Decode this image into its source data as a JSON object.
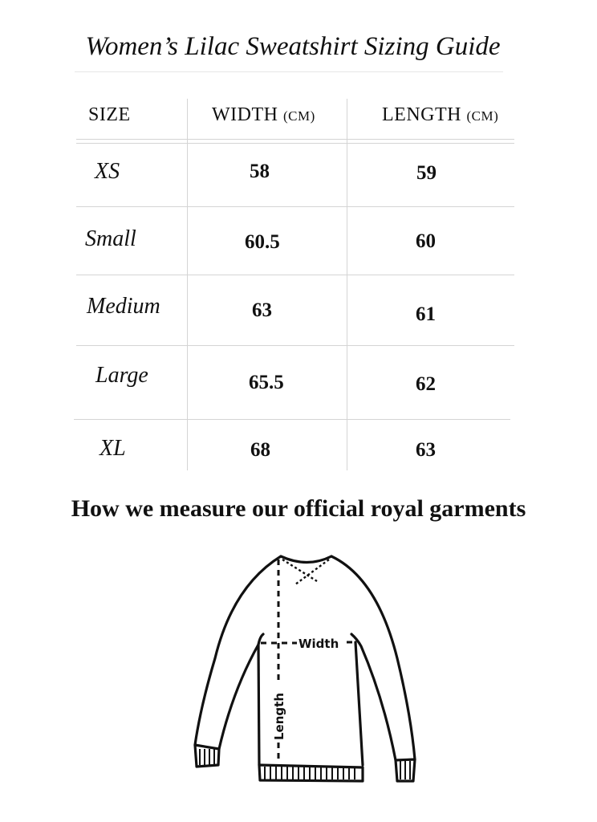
{
  "title": "Women’s Lilac Sweatshirt Sizing Guide",
  "table": {
    "headers": {
      "size": "SIZE",
      "width": "WIDTH",
      "width_unit": "(CM)",
      "length": "LENGTH",
      "length_unit": "(CM)"
    },
    "rows": [
      {
        "size": "XS",
        "width": "58",
        "length": "59"
      },
      {
        "size": "Small",
        "width": "60.5",
        "length": "60"
      },
      {
        "size": "Medium",
        "width": "63",
        "length": "61"
      },
      {
        "size": "Large",
        "width": "65.5",
        "length": "62"
      },
      {
        "size": "XL",
        "width": "68",
        "length": "63"
      }
    ]
  },
  "measure_heading": "How we measure our official royal garments",
  "diagram": {
    "width_label": "Width",
    "length_label": "Length"
  }
}
